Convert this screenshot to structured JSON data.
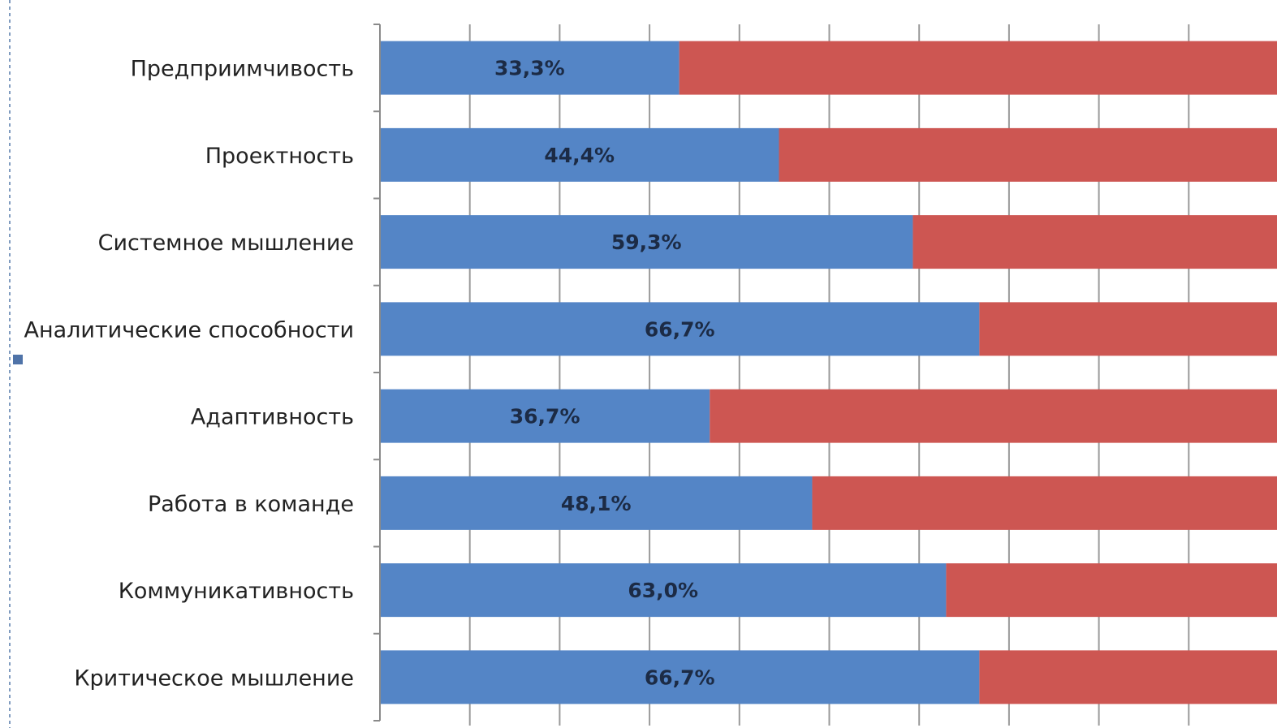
{
  "chart_data": {
    "type": "bar",
    "orientation": "horizontal",
    "stacked": true,
    "percent_stacked": true,
    "categories": [
      "Предприимчивость",
      "Проектность",
      "Системное  мышление",
      "Аналитические  способности",
      "Адаптивность",
      "Работа в команде",
      "Коммуникативность",
      "Критическое  мышление"
    ],
    "series": [
      {
        "color": "#5485c6",
        "values": [
          33.3,
          44.4,
          59.3,
          66.7,
          36.7,
          48.1,
          63.0,
          66.7
        ],
        "labels": [
          "33,3%",
          "44,4%",
          "59,3%",
          "66,7%",
          "36,7%",
          "48,1%",
          "63,0%",
          "66,7%"
        ]
      },
      {
        "color": "#cd5652",
        "values": [
          66.7,
          55.6,
          40.7,
          33.3,
          63.3,
          51.9,
          37.0,
          33.3
        ]
      }
    ],
    "xlim": [
      0,
      100
    ],
    "grid": true,
    "legend": "none"
  }
}
